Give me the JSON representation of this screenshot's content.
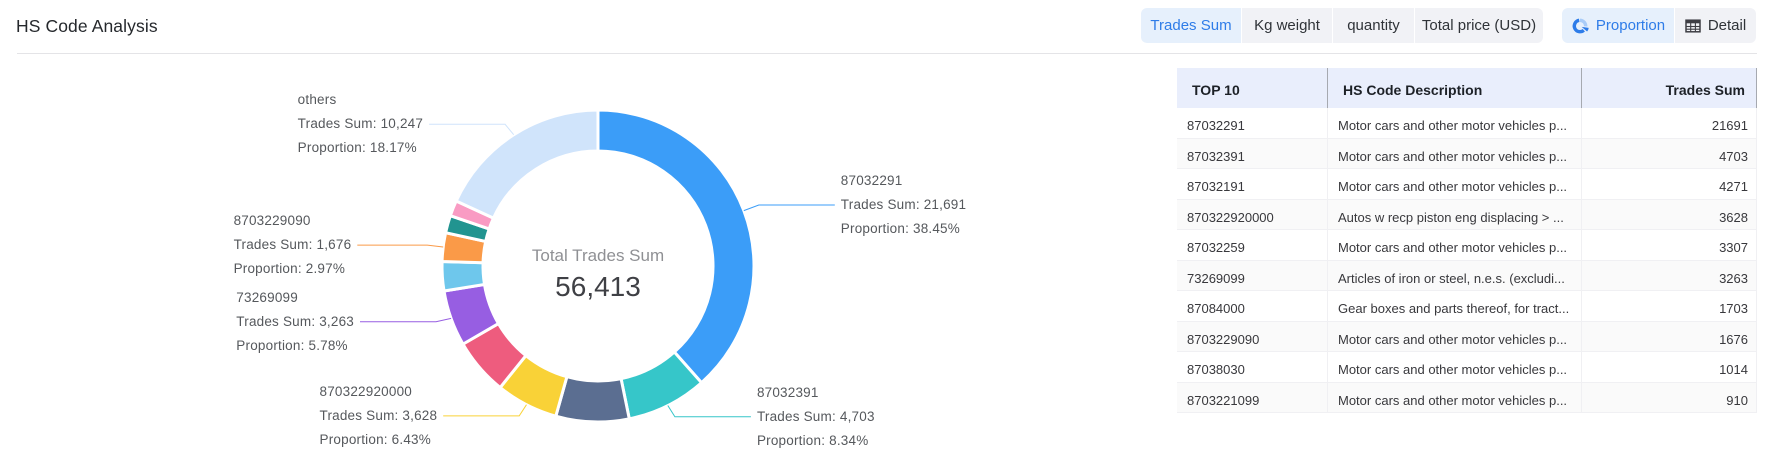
{
  "page": {
    "title": "HS Code Analysis"
  },
  "toolbar": {
    "metric_tabs": [
      {
        "label": "Trades Sum",
        "active": true
      },
      {
        "label": "Kg weight",
        "active": false
      },
      {
        "label": "quantity",
        "active": false
      },
      {
        "label": "Total price (USD)",
        "active": false
      }
    ],
    "view_buttons": [
      {
        "label": "Proportion",
        "icon": "donut-chart-icon",
        "active": true
      },
      {
        "label": "Detail",
        "icon": "table-icon",
        "active": false
      }
    ]
  },
  "chart_data": {
    "type": "pie",
    "variant": "donut",
    "title": "",
    "center_label": "Total Trades Sum",
    "total_label": "56,413",
    "total": 56413,
    "legend_position": "none",
    "label_line_1": "Trades Sum: ",
    "label_line_2": "Proportion: ",
    "segments": [
      {
        "name": "87032291",
        "value": 21691,
        "value_label": "21,691",
        "proportion": "38.45%",
        "color": "#3b9df8",
        "labeled": true
      },
      {
        "name": "87032391",
        "value": 4703,
        "value_label": "4,703",
        "proportion": "8.34%",
        "color": "#36c6c9",
        "labeled": true
      },
      {
        "name": "87032191",
        "value": 4271,
        "value_label": "4,271",
        "proportion": "",
        "color": "#5b6e91",
        "labeled": false
      },
      {
        "name": "870322920000",
        "value": 3628,
        "value_label": "3,628",
        "proportion": "6.43%",
        "color": "#f9d237",
        "labeled": true
      },
      {
        "name": "87032259",
        "value": 3307,
        "value_label": "3,307",
        "proportion": "",
        "color": "#ee5c7e",
        "labeled": false
      },
      {
        "name": "73269099",
        "value": 3263,
        "value_label": "3,263",
        "proportion": "5.78%",
        "color": "#975ee2",
        "labeled": true
      },
      {
        "name": "87084000",
        "value": 1703,
        "value_label": "1,703",
        "proportion": "",
        "color": "#6ec7ec",
        "labeled": false
      },
      {
        "name": "8703229090",
        "value": 1676,
        "value_label": "1,676",
        "proportion": "2.97%",
        "color": "#fa9a48",
        "labeled": true
      },
      {
        "name": "87038030",
        "value": 1014,
        "value_label": "1,014",
        "proportion": "",
        "color": "#219490",
        "labeled": false
      },
      {
        "name": "8703221099",
        "value": 910,
        "value_label": "910",
        "proportion": "",
        "color": "#f99bc3",
        "labeled": false
      },
      {
        "name": "others",
        "value": 10247,
        "value_label": "10,247",
        "proportion": "18.17%",
        "color": "#d0e4fb",
        "labeled": true
      }
    ]
  },
  "table": {
    "columns": [
      "TOP 10",
      "HS Code Description",
      "Trades Sum"
    ],
    "rows": [
      [
        "87032291",
        "Motor cars and other motor vehicles p...",
        "21691"
      ],
      [
        "87032391",
        "Motor cars and other motor vehicles p...",
        "4703"
      ],
      [
        "87032191",
        "Motor cars and other motor vehicles p...",
        "4271"
      ],
      [
        "870322920000",
        "Autos w recp piston eng displacing > ...",
        "3628"
      ],
      [
        "87032259",
        "Motor cars and other motor vehicles p...",
        "3307"
      ],
      [
        "73269099",
        "Articles of iron or steel, n.e.s. (excludi...",
        "3263"
      ],
      [
        "87084000",
        "Gear boxes and parts thereof, for tract...",
        "1703"
      ],
      [
        "8703229090",
        "Motor cars and other motor vehicles p...",
        "1676"
      ],
      [
        "87038030",
        "Motor cars and other motor vehicles p...",
        "1014"
      ],
      [
        "8703221099",
        "Motor cars and other motor vehicles p...",
        "910"
      ]
    ]
  },
  "colors": {
    "active_tab_text": "#2e7ce8",
    "active_tab_bg": "#e6f0fc",
    "inactive_tab_bg": "#f1f2f6",
    "table_header_bg": "#e9eefc",
    "divider": "#e4e4e7"
  }
}
